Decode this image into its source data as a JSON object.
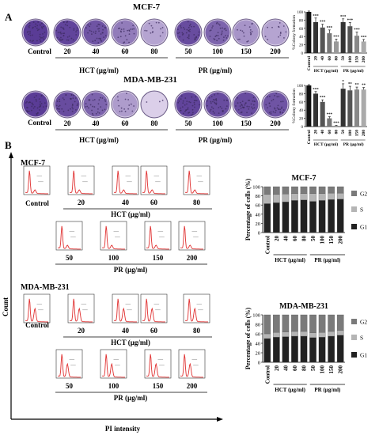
{
  "panel_a": {
    "label": "A",
    "mcf7": {
      "title": "MCF-7",
      "control": "Control",
      "hct_doses": [
        "20",
        "40",
        "60",
        "80"
      ],
      "pr_doses": [
        "50",
        "100",
        "150",
        "200"
      ],
      "hct_axis": "HCT (µg/ml)",
      "pr_axis": "PR (µg/ml)"
    },
    "mda": {
      "title": "MDA-MB-231",
      "control": "Control",
      "hct_doses": [
        "20",
        "40",
        "60",
        "80"
      ],
      "pr_doses": [
        "50",
        "100",
        "150",
        "200"
      ],
      "hct_axis": "HCT (µg/ml)",
      "pr_axis": "PR (µg/ml)"
    }
  },
  "panel_b": {
    "label": "B",
    "y_axis": "Count",
    "x_axis": "PI intensity",
    "mcf7": {
      "title": "MCF-7",
      "control": "Control",
      "hct_doses": [
        "20",
        "40",
        "60",
        "80"
      ],
      "pr_doses": [
        "50",
        "100",
        "150",
        "200"
      ],
      "hct_axis": "HCT (µg/ml)",
      "pr_axis": "PR (µg/ml)"
    },
    "mda": {
      "title": "MDA-MB-231",
      "control": "Control",
      "hct_doses": [
        "20",
        "40",
        "60",
        "80"
      ],
      "pr_doses": [
        "50",
        "100",
        "150",
        "200"
      ],
      "hct_axis": "HCT (µg/ml)",
      "pr_axis": "PR (µg/ml)"
    }
  },
  "chart_data": [
    {
      "type": "bar",
      "title": "",
      "ylabel": "%Colony formation",
      "categories": [
        "Control",
        "20",
        "40",
        "60",
        "80",
        "50",
        "100",
        "150",
        "200"
      ],
      "group_labels": [
        "HCT (µg/ml)",
        "PR (µg/ml)"
      ],
      "values": [
        100,
        75,
        62,
        48,
        28,
        75,
        65,
        42,
        28
      ],
      "errors": [
        2,
        10,
        8,
        8,
        6,
        8,
        9,
        9,
        5
      ],
      "sig": [
        "",
        "***",
        "***",
        "***",
        "***",
        "***",
        "***",
        "***",
        "***"
      ],
      "ylim": [
        0,
        100
      ],
      "yticks": [
        0,
        20,
        40,
        60,
        80,
        100
      ],
      "colors": [
        "#111111",
        "#333333",
        "#555555",
        "#777777",
        "#999999",
        "#333333",
        "#555555",
        "#888888",
        "#aaaaaa"
      ]
    },
    {
      "type": "bar",
      "title": "",
      "ylabel": "%Colony formation",
      "categories": [
        "Control",
        "20",
        "40",
        "60",
        "80",
        "50",
        "100",
        "150",
        "200"
      ],
      "group_labels": [
        "HCT (µg/ml)",
        "PR (µg/ml)"
      ],
      "values": [
        100,
        80,
        60,
        20,
        2,
        92,
        88,
        90,
        90
      ],
      "errors": [
        2,
        5,
        5,
        4,
        1,
        12,
        10,
        6,
        5
      ],
      "sig": [
        "",
        "***",
        "***",
        "***",
        "***",
        "*",
        "**",
        "**",
        "**"
      ],
      "ylim": [
        0,
        100
      ],
      "yticks": [
        0,
        20,
        40,
        60,
        80,
        100
      ],
      "colors": [
        "#111111",
        "#333333",
        "#555555",
        "#777777",
        "#999999",
        "#333333",
        "#555555",
        "#888888",
        "#aaaaaa"
      ]
    },
    {
      "type": "bar",
      "title": "MCF-7",
      "ylabel": "Percentage of cells (%)",
      "categories": [
        "Control",
        "20",
        "40",
        "60",
        "80",
        "50",
        "100",
        "150",
        "200"
      ],
      "group_labels": [
        "HCT (µg/ml)",
        "PR (µg/ml)"
      ],
      "series": [
        {
          "name": "G1",
          "values": [
            63,
            65,
            67,
            70,
            71,
            68,
            70,
            72,
            73
          ],
          "color": "#222222"
        },
        {
          "name": "S",
          "values": [
            20,
            18,
            17,
            15,
            14,
            17,
            15,
            14,
            13
          ],
          "color": "#b5b5b5"
        },
        {
          "name": "G2",
          "values": [
            17,
            17,
            16,
            15,
            15,
            15,
            15,
            14,
            14
          ],
          "color": "#7a7a7a"
        }
      ],
      "ylim": [
        0,
        100
      ],
      "yticks": [
        0,
        20,
        40,
        60,
        80,
        100
      ]
    },
    {
      "type": "bar",
      "title": "MDA-MB-231",
      "ylabel": "Percentage of cells (%)",
      "categories": [
        "Control",
        "20",
        "40",
        "60",
        "80",
        "50",
        "100",
        "150",
        "200"
      ],
      "group_labels": [
        "HCT (µg/ml)",
        "PR (µg/ml)"
      ],
      "series": [
        {
          "name": "G1",
          "values": [
            50,
            53,
            54,
            55,
            55,
            52,
            53,
            55,
            57
          ],
          "color": "#222222"
        },
        {
          "name": "S",
          "values": [
            10,
            10,
            10,
            10,
            10,
            10,
            10,
            10,
            10
          ],
          "color": "#b5b5b5"
        },
        {
          "name": "G2",
          "values": [
            40,
            37,
            36,
            35,
            35,
            38,
            37,
            35,
            33
          ],
          "color": "#7a7a7a"
        }
      ],
      "ylim": [
        0,
        100
      ],
      "yticks": [
        0,
        20,
        40,
        60,
        80,
        100
      ]
    }
  ]
}
